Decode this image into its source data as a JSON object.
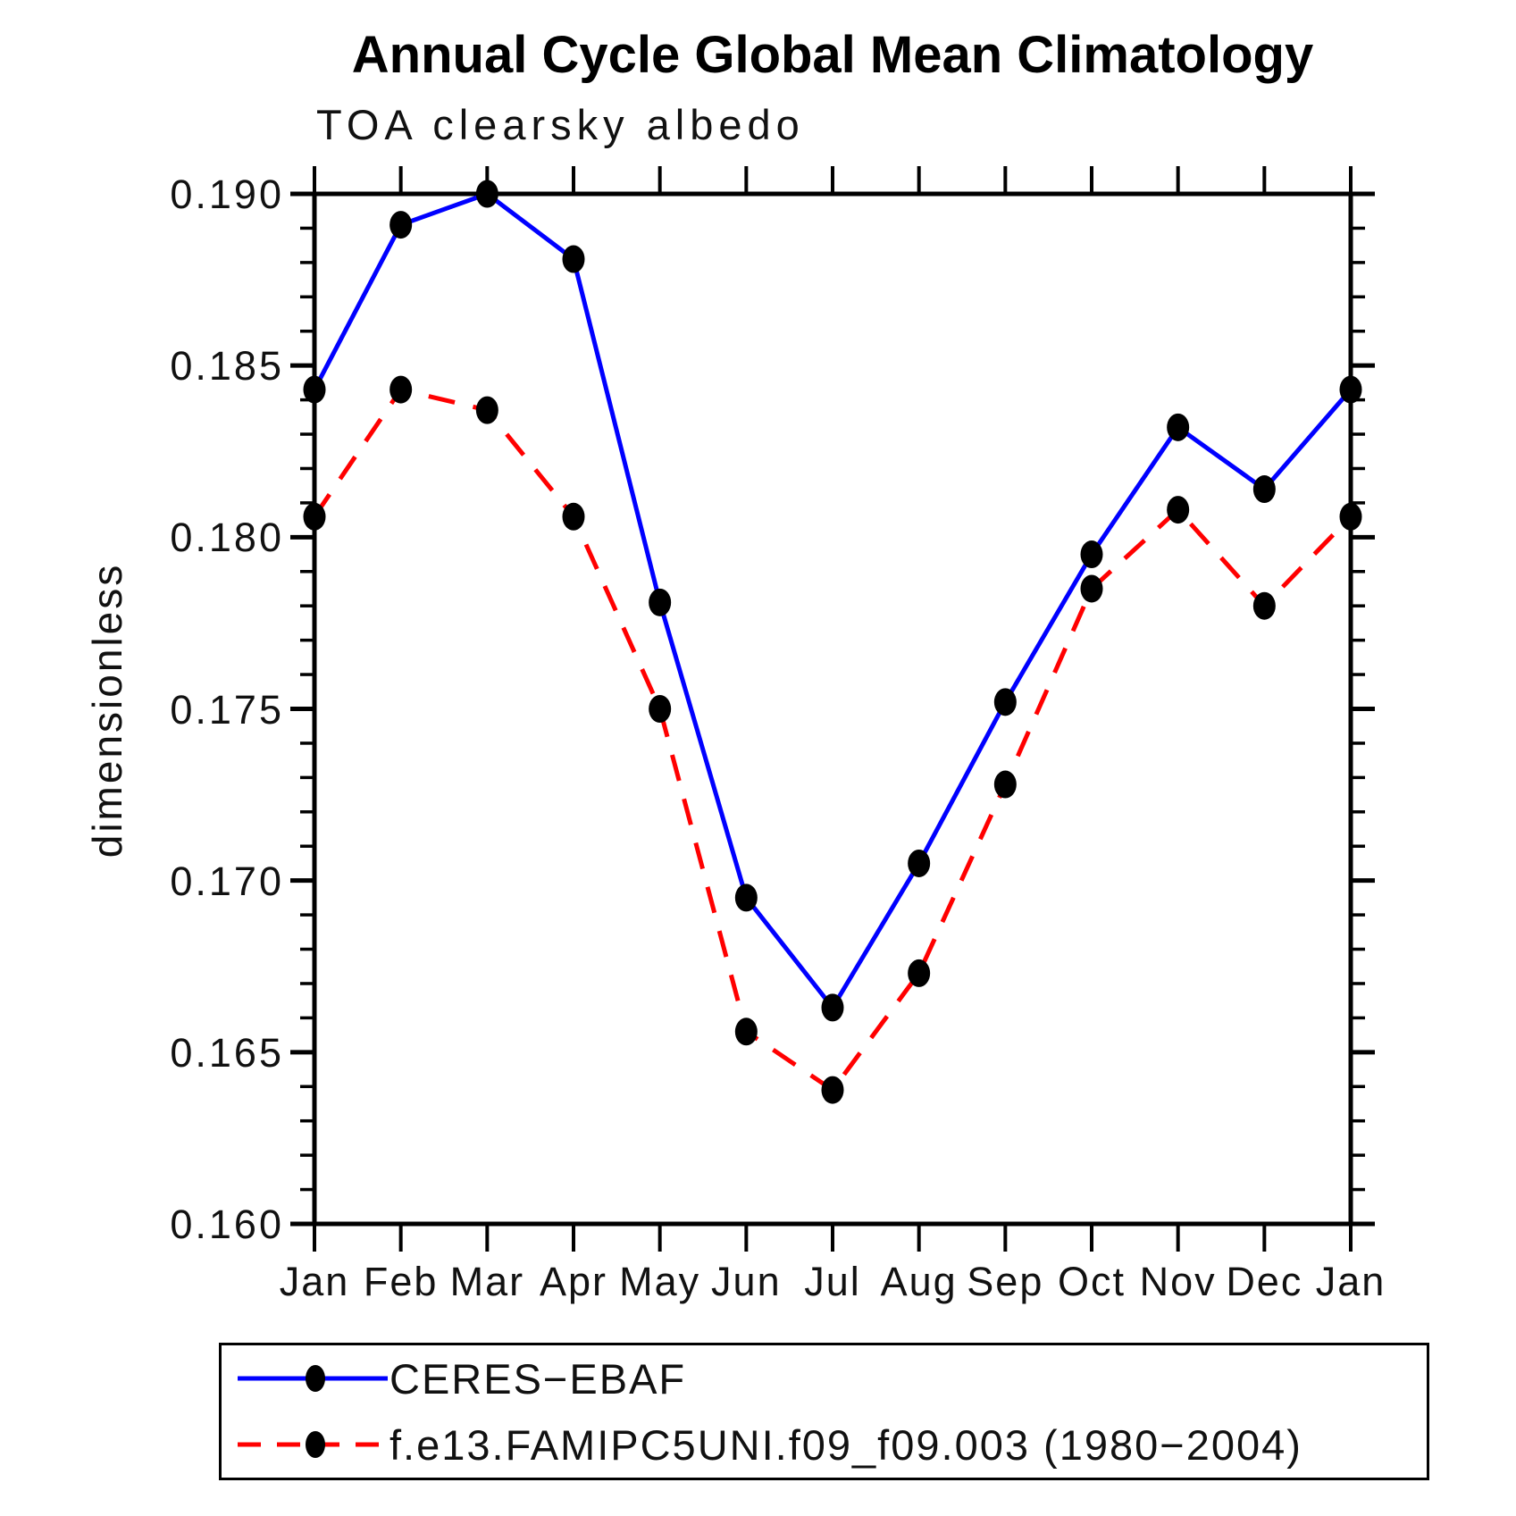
{
  "title": "Annual Cycle Global Mean Climatology",
  "subtitle": "TOA clearsky albedo",
  "ylabel": "dimensionless",
  "colors": {
    "obs_line": "#0000ff",
    "model_line": "#ff0000",
    "marker": "#000000",
    "axis": "#000000"
  },
  "chart_data": {
    "type": "line",
    "categories": [
      "Jan",
      "Feb",
      "Mar",
      "Apr",
      "May",
      "Jun",
      "Jul",
      "Aug",
      "Sep",
      "Oct",
      "Nov",
      "Dec",
      "Jan"
    ],
    "series": [
      {
        "name": "CERES−EBAF",
        "color": "#0000ff",
        "line_style": "solid",
        "marker": "black-dot",
        "values": [
          0.1843,
          0.1891,
          0.19,
          0.1881,
          0.1781,
          0.1695,
          0.1663,
          0.1705,
          0.1752,
          0.1795,
          0.1832,
          0.1814,
          0.1843
        ]
      },
      {
        "name": "f.e13.FAMIPC5UNI.f09_f09.003 (1980−2004)",
        "color": "#ff0000",
        "line_style": "dashed",
        "marker": "black-dot",
        "values": [
          0.1806,
          0.1843,
          0.1837,
          0.1806,
          0.175,
          0.1656,
          0.1639,
          0.1673,
          0.1728,
          0.1785,
          0.1808,
          0.178,
          0.1806
        ]
      }
    ],
    "xlabel": "",
    "ylabel": "dimensionless",
    "ylim": [
      0.16,
      0.19
    ],
    "y_major_step": 0.005,
    "y_minor_step": 0.001,
    "y_tick_labels": [
      "0.160",
      "0.165",
      "0.170",
      "0.175",
      "0.180",
      "0.185",
      "0.190"
    ],
    "grid": false,
    "legend_position": "bottom-left-box"
  }
}
